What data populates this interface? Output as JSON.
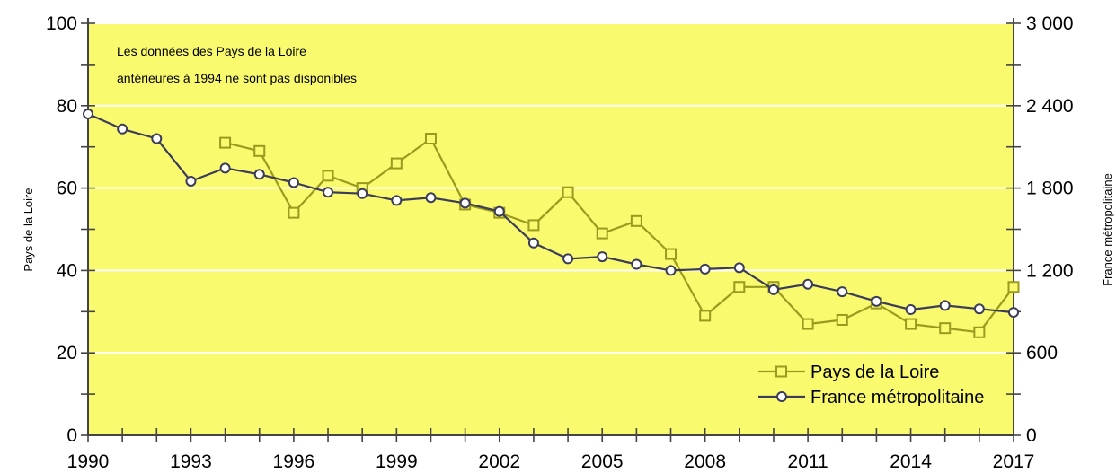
{
  "chart_data": {
    "type": "line",
    "annotation": [
      "Les données des Pays de la Loire",
      "antérieures à 1994 ne sont pas disponibles"
    ],
    "ylabel_left": "Pays de la Loire",
    "ylabel_right": "France métropolitaine",
    "xlim": [
      1990,
      2017
    ],
    "ylim_left": [
      0,
      100
    ],
    "ylim_right": [
      0,
      3000
    ],
    "x_ticks": [
      1990,
      1993,
      1996,
      1999,
      2002,
      2005,
      2008,
      2011,
      2014,
      2017
    ],
    "y_ticks_left": [
      "0",
      "20",
      "40",
      "60",
      "80",
      "100"
    ],
    "y_ticks_right": [
      "0",
      "600",
      "1 200",
      "1 800",
      "2 400",
      "3 000"
    ],
    "grid": "horizontal",
    "legend_position": "bottom-right",
    "colors": {
      "plot_background": "#FAFA6E",
      "pays_de_la_loire": "#9A9A1E",
      "france_metropolitaine": "#3B3B5A",
      "grid": "#ffffff",
      "axis": "#444444"
    },
    "series": [
      {
        "name": "Pays de la Loire",
        "axis": "left",
        "marker": "square",
        "x": [
          1994,
          1995,
          1996,
          1997,
          1998,
          1999,
          2000,
          2001,
          2002,
          2003,
          2004,
          2005,
          2006,
          2007,
          2008,
          2009,
          2010,
          2011,
          2012,
          2013,
          2014,
          2015,
          2016,
          2017
        ],
        "values": [
          71,
          69,
          54,
          63,
          60,
          66,
          72,
          56,
          54,
          51,
          59,
          49,
          52,
          44,
          29,
          36,
          36,
          27,
          28,
          32,
          27,
          26,
          25,
          36
        ]
      },
      {
        "name": "France métropolitaine",
        "axis": "right",
        "marker": "circle",
        "x": [
          1990,
          1991,
          1992,
          1993,
          1994,
          1995,
          1996,
          1997,
          1998,
          1999,
          2000,
          2001,
          2002,
          2003,
          2004,
          2005,
          2006,
          2007,
          2008,
          2009,
          2010,
          2011,
          2012,
          2013,
          2014,
          2015,
          2016,
          2017
        ],
        "values": [
          2340,
          2230,
          2160,
          1850,
          1945,
          1900,
          1840,
          1770,
          1760,
          1710,
          1730,
          1690,
          1630,
          1400,
          1285,
          1300,
          1245,
          1200,
          1210,
          1220,
          1060,
          1100,
          1045,
          975,
          915,
          945,
          920,
          895
        ]
      }
    ]
  }
}
